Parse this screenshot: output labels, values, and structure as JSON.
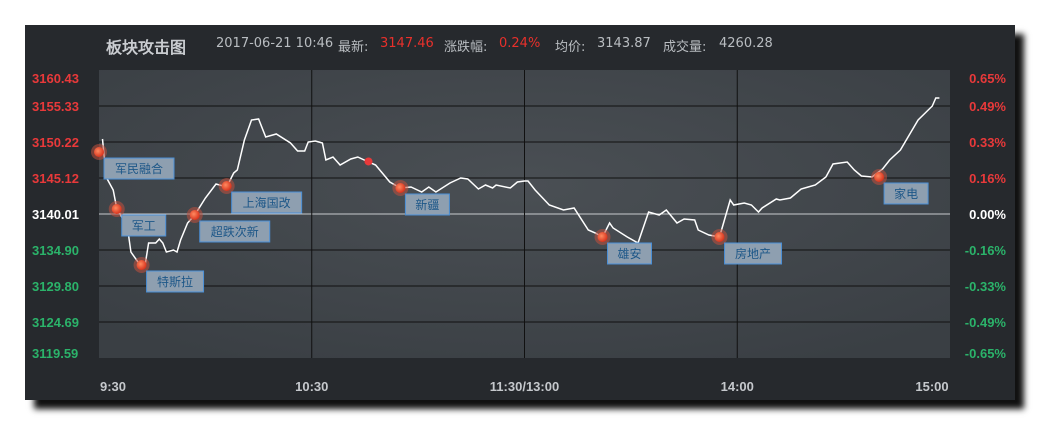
{
  "header": {
    "title": "板块攻击图",
    "datetime": "2017-06-21 10:46",
    "latest_label": "最新:",
    "latest_value": "3147.46",
    "change_label": "涨跌幅:",
    "change_value": "0.24%",
    "avg_label": "均价:",
    "avg_value": "3143.87",
    "volume_label": "成交量:",
    "volume_value": "4260.28"
  },
  "colors": {
    "up": "#e8393a",
    "down": "#2bb36a",
    "base": "#ffffff",
    "line": "#ffffff",
    "marker": "#e0482e",
    "label_bg": "#8e9fb0",
    "label_border": "#4a8fd6"
  },
  "chart_data": {
    "type": "line",
    "title": "板块攻击图",
    "base_price": 3140.01,
    "ylim": [
      3119.59,
      3160.43
    ],
    "y_ticks_left": [
      "3160.43",
      "3155.33",
      "3150.22",
      "3145.12",
      "3140.01",
      "3134.90",
      "3129.80",
      "3124.69",
      "3119.59"
    ],
    "y_ticks_right": [
      "0.65%",
      "0.49%",
      "0.33%",
      "0.16%",
      "0.00%",
      "-0.16%",
      "-0.33%",
      "-0.49%",
      "-0.65%"
    ],
    "x_ticks": [
      "9:30",
      "10:30",
      "11:30/13:00",
      "14:00",
      "15:00"
    ],
    "grid": true,
    "points": [
      [
        "9:31",
        3150.65
      ],
      [
        "9:32",
        3145.26
      ],
      [
        "9:34",
        3143.41
      ],
      [
        "9:35",
        3140.86
      ],
      [
        "9:38",
        3138.17
      ],
      [
        "9:39",
        3134.62
      ],
      [
        "9:41",
        3133.2
      ],
      [
        "9:43",
        3132.78
      ],
      [
        "9:44",
        3135.9
      ],
      [
        "9:46",
        3135.9
      ],
      [
        "9:47",
        3136.47
      ],
      [
        "9:48",
        3135.9
      ],
      [
        "9:49",
        3134.62
      ],
      [
        "9:51",
        3134.91
      ],
      [
        "9:52",
        3134.62
      ],
      [
        "9:53",
        3136.32
      ],
      [
        "9:55",
        3138.73
      ],
      [
        "9:57",
        3139.87
      ],
      [
        "10:00",
        3142.28
      ],
      [
        "10:03",
        3144.26
      ],
      [
        "10:06",
        3143.84
      ],
      [
        "10:08",
        3145.82
      ],
      [
        "10:09",
        3146.25
      ],
      [
        "10:11",
        3150.5
      ],
      [
        "10:13",
        3153.34
      ],
      [
        "10:15",
        3153.48
      ],
      [
        "10:17",
        3150.93
      ],
      [
        "10:20",
        3151.35
      ],
      [
        "10:24",
        3150.08
      ],
      [
        "10:26",
        3148.94
      ],
      [
        "10:28",
        3148.94
      ],
      [
        "10:29",
        3150.22
      ],
      [
        "10:31",
        3150.36
      ],
      [
        "10:33",
        3150.08
      ],
      [
        "10:34",
        3147.67
      ],
      [
        "10:36",
        3148.09
      ],
      [
        "10:38",
        3146.96
      ],
      [
        "10:41",
        3147.81
      ],
      [
        "10:43",
        3148.09
      ],
      [
        "10:46",
        3147.38
      ],
      [
        "10:48",
        3146.96
      ],
      [
        "10:52",
        3144.55
      ],
      [
        "10:55",
        3143.7
      ],
      [
        "10:58",
        3143.84
      ],
      [
        "11:01",
        3143.13
      ],
      [
        "11:03",
        3143.84
      ],
      [
        "11:05",
        3143.13
      ],
      [
        "11:09",
        3144.41
      ],
      [
        "11:12",
        3145.12
      ],
      [
        "11:14",
        3144.97
      ],
      [
        "11:17",
        3143.56
      ],
      [
        "11:19",
        3144.12
      ],
      [
        "11:21",
        3143.7
      ],
      [
        "11:22",
        3144.12
      ],
      [
        "11:26",
        3143.7
      ],
      [
        "11:28",
        3144.55
      ],
      [
        "11:30",
        3144.69
      ],
      [
        "13:01",
        3144.69
      ],
      [
        "13:03",
        3143.41
      ],
      [
        "13:07",
        3141.29
      ],
      [
        "13:11",
        3140.58
      ],
      [
        "13:14",
        3140.86
      ],
      [
        "13:18",
        3137.74
      ],
      [
        "13:20",
        3137.31
      ],
      [
        "13:22",
        3136.75
      ],
      [
        "13:24",
        3138.73
      ],
      [
        "13:25",
        3138.02
      ],
      [
        "13:29",
        3136.75
      ],
      [
        "13:32",
        3135.9
      ],
      [
        "13:35",
        3140.29
      ],
      [
        "13:38",
        3139.87
      ],
      [
        "13:40",
        3140.58
      ],
      [
        "13:43",
        3138.73
      ],
      [
        "13:45",
        3139.3
      ],
      [
        "13:48",
        3139.16
      ],
      [
        "13:49",
        3137.74
      ],
      [
        "13:52",
        3137.03
      ],
      [
        "13:55",
        3136.75
      ],
      [
        "13:58",
        3142.0
      ],
      [
        "13:59",
        3141.29
      ],
      [
        "14:02",
        3141.57
      ],
      [
        "14:04",
        3141.29
      ],
      [
        "14:06",
        3140.29
      ],
      [
        "14:07",
        3140.86
      ],
      [
        "14:11",
        3142.14
      ],
      [
        "14:12",
        3142.0
      ],
      [
        "14:15",
        3142.28
      ],
      [
        "14:18",
        3143.56
      ],
      [
        "14:20",
        3143.84
      ],
      [
        "14:22",
        3144.12
      ],
      [
        "14:25",
        3145.26
      ],
      [
        "14:27",
        3147.1
      ],
      [
        "14:31",
        3147.38
      ],
      [
        "14:33",
        3146.25
      ],
      [
        "14:35",
        3145.4
      ],
      [
        "14:38",
        3145.26
      ],
      [
        "14:41",
        3146.39
      ],
      [
        "14:43",
        3147.67
      ],
      [
        "14:46",
        3149.08
      ],
      [
        "14:49",
        3151.64
      ],
      [
        "14:51",
        3153.34
      ],
      [
        "14:53",
        3154.33
      ],
      [
        "14:55",
        3155.33
      ],
      [
        "14:56",
        3156.46
      ],
      [
        "14:57",
        3156.46
      ]
    ],
    "current_point": [
      "10:46",
      3147.46
    ],
    "events": [
      {
        "time": "9:30",
        "price": 3148.8,
        "label": "军民融合"
      },
      {
        "time": "9:35",
        "price": 3140.72,
        "label": "军工"
      },
      {
        "time": "9:42",
        "price": 3132.78,
        "label": "特斯拉"
      },
      {
        "time": "9:57",
        "price": 3139.87,
        "label": "超跌次新"
      },
      {
        "time": "10:06",
        "price": 3143.98,
        "label": "上海国改"
      },
      {
        "time": "10:55",
        "price": 3143.7,
        "label": "新疆"
      },
      {
        "time": "13:22",
        "price": 3136.75,
        "label": "雄安"
      },
      {
        "time": "13:55",
        "price": 3136.75,
        "label": "房地产"
      },
      {
        "time": "14:40",
        "price": 3145.26,
        "label": "家电"
      }
    ]
  }
}
